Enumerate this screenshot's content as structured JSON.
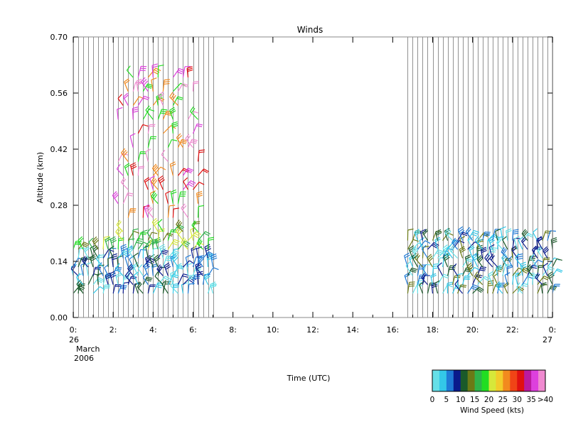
{
  "chart_data": {
    "type": "wind-barb time-height plot",
    "title": "Winds",
    "xlabel": "Time (UTC)",
    "ylabel": "Altitude (km)",
    "xlim_hours": [
      0,
      24
    ],
    "ylim": [
      0.0,
      0.7
    ],
    "y_ticks": [
      "0.00",
      "0.14",
      "0.28",
      "0.42",
      "0.56",
      "0.70"
    ],
    "x_ticks": [
      "0:",
      "2:",
      "4:",
      "6:",
      "8:",
      "10:",
      "12:",
      "14:",
      "16:",
      "18:",
      "20:",
      "22:",
      "0:"
    ],
    "x_date_start": [
      "26",
      "March",
      "2006"
    ],
    "x_date_end": "27",
    "profile_times_hours": [
      0.0,
      0.25,
      0.5,
      0.75,
      1.0,
      1.25,
      1.5,
      1.75,
      2.0,
      2.25,
      2.5,
      2.75,
      3.0,
      3.25,
      3.5,
      3.75,
      4.0,
      4.25,
      4.5,
      4.75,
      5.0,
      5.25,
      5.5,
      5.75,
      6.0,
      6.25,
      6.5,
      6.75,
      7.0,
      16.75,
      17.0,
      17.25,
      17.5,
      17.75,
      18.0,
      18.25,
      18.5,
      18.75,
      19.0,
      19.25,
      19.5,
      19.75,
      20.0,
      20.25,
      20.5,
      20.75,
      21.0,
      21.25,
      21.5,
      21.75,
      22.0,
      22.25,
      22.5,
      22.75,
      23.0,
      23.25,
      23.5,
      23.75,
      24.0
    ],
    "colorbar": {
      "title": "Wind Speed (kts)",
      "tick_labels": [
        "0",
        "5",
        "10",
        "15",
        "20",
        "25",
        "30",
        "35",
        ">40"
      ],
      "colors": [
        "#66e0e8",
        "#33c8e8",
        "#1f7ad6",
        "#0a1a8c",
        "#1a5a2a",
        "#6b7a16",
        "#2fb34a",
        "#22dd22",
        "#d6e83a",
        "#f2cc2a",
        "#f28a1e",
        "#f04416",
        "#e01010",
        "#bb1a9e",
        "#dd40dd",
        "#f08ad0"
      ]
    }
  }
}
